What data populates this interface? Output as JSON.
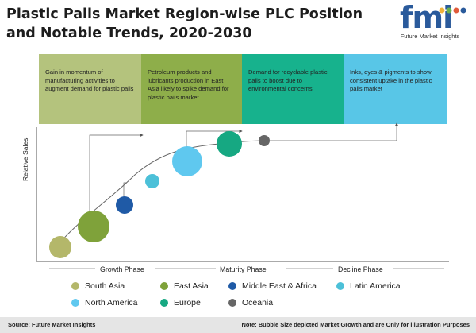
{
  "title": "Plastic Pails Market Region-wise PLC Position and Notable Trends, 2020-2030",
  "logo": {
    "word": "fmi",
    "tagline": "Future Market Insights",
    "dot_colors": [
      "#f0b23a",
      "#6ab04c",
      "#e05a3a",
      "#2a5a9b"
    ]
  },
  "trend_boxes": [
    {
      "text": "Gain in momentum of manufacturing activities to augment demand for plastic pails",
      "color": "#b4c37d"
    },
    {
      "text": "Petroleum products and lubricants production in East Asia likely to spike demand for plastic pails market",
      "color": "#8eae4a"
    },
    {
      "text": "Demand for recyclable plastic pails to boost due to environmental concerns",
      "color": "#17b28d"
    },
    {
      "text": "Inks, dyes & pigments to show consistent uptake in the plastic pails market",
      "color": "#58c6e7"
    }
  ],
  "axes": {
    "ylabel": "Relative Sales"
  },
  "phases": [
    "Growth Phase",
    "Maturity Phase",
    "Decline Phase"
  ],
  "regions": [
    {
      "name": "South Asia",
      "color": "#b4b76a"
    },
    {
      "name": "East Asia",
      "color": "#7fa23a"
    },
    {
      "name": "Middle East & Africa",
      "color": "#1f5aa6"
    },
    {
      "name": "Latin America",
      "color": "#4cc0d8"
    },
    {
      "name": "North America",
      "color": "#5fc8ef"
    },
    {
      "name": "Europe",
      "color": "#16a882"
    },
    {
      "name": "Oceania",
      "color": "#666666"
    }
  ],
  "footer": {
    "source": "Source: Future Market Insights",
    "note": "Note: Bubble Size depicted Market Growth and are Only for illustration Purposes"
  }
}
